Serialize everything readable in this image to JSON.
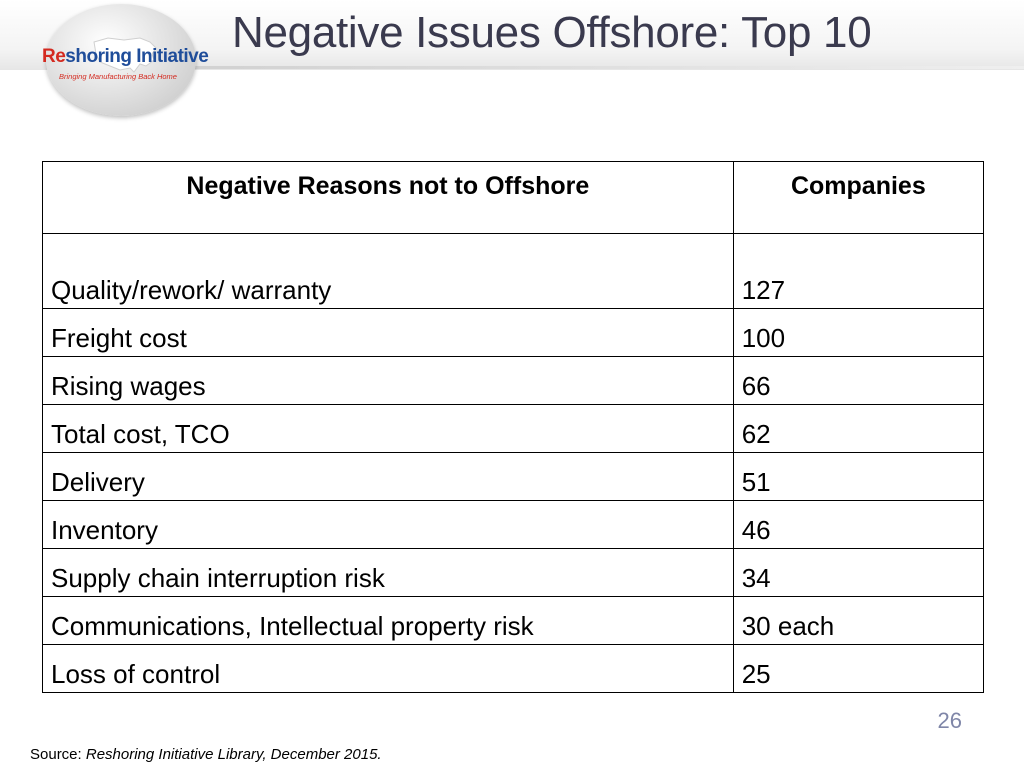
{
  "slide": {
    "title": "Negative Issues Offshore: Top 10",
    "page_number": "26"
  },
  "logo": {
    "wordmark_prefix": "Re",
    "wordmark_rest": "shoring Initiative",
    "tagline": "Bringing Manufacturing Back Home",
    "colors": {
      "red": "#d42a20",
      "blue": "#1f4d9a"
    }
  },
  "table": {
    "headers": {
      "reason": "Negative Reasons not to Offshore",
      "companies": "Companies"
    },
    "rows": [
      {
        "reason": "Quality/rework/ warranty",
        "companies": "127"
      },
      {
        "reason": "Freight cost",
        "companies": "100"
      },
      {
        "reason": "Rising wages",
        "companies": "66"
      },
      {
        "reason": "Total cost, TCO",
        "companies": "62"
      },
      {
        "reason": "Delivery",
        "companies": "51"
      },
      {
        "reason": "Inventory",
        "companies": "46"
      },
      {
        "reason": "Supply chain interruption risk",
        "companies": "34"
      },
      {
        "reason": "Communications, Intellectual property risk",
        "companies": "30 each"
      },
      {
        "reason": "Loss of control",
        "companies": "25"
      }
    ]
  },
  "source": {
    "label": "Source:",
    "text": "Reshoring Initiative Library, December 2015."
  },
  "colors": {
    "title": "#3a3a4e",
    "page_number": "#7f86a8"
  }
}
